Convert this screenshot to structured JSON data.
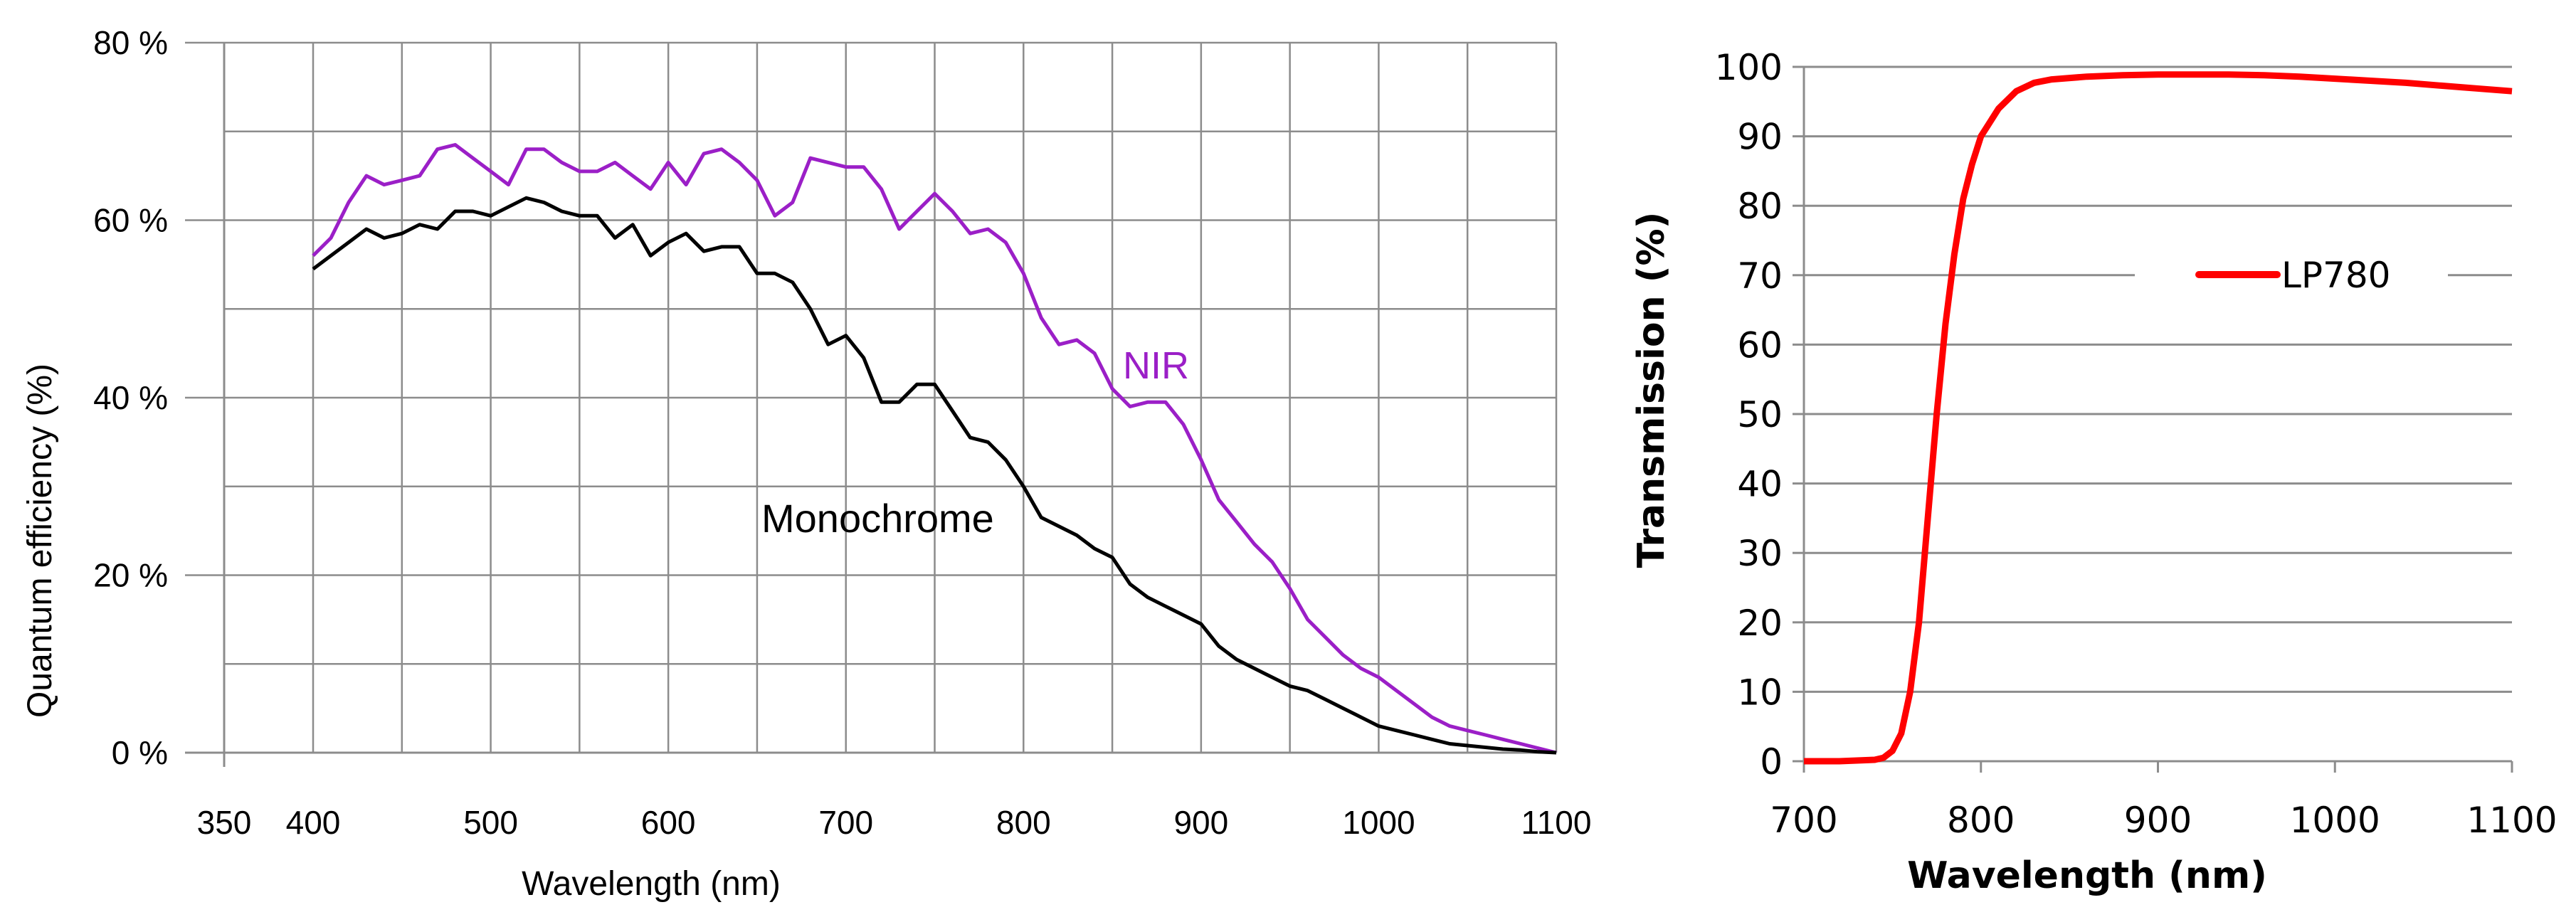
{
  "charts": {
    "left": {
      "type": "line",
      "xlabel": "Wavelength (nm)",
      "ylabel": "Quantum efficiency (%)",
      "ylim": [
        0,
        80
      ],
      "x_ticks": [
        "350",
        "400",
        "500",
        "600",
        "700",
        "800",
        "900",
        "1000",
        "1100"
      ],
      "y_ticks": [
        "0 %",
        "20 %",
        "40 %",
        "60 %",
        "80 %"
      ]
    },
    "right": {
      "type": "line",
      "xlabel": "Wavelength (nm)",
      "ylabel": "Transmission (%)",
      "xlim": [
        700,
        1100
      ],
      "ylim": [
        0,
        100
      ],
      "x_ticks": [
        "700",
        "800",
        "900",
        "1000",
        "1100"
      ],
      "y_ticks": [
        "0",
        "10",
        "20",
        "30",
        "40",
        "50",
        "60",
        "70",
        "80",
        "90",
        "100"
      ],
      "legend": "LP780"
    }
  },
  "chart_data": [
    {
      "type": "line",
      "title": "",
      "xlabel": "Wavelength (nm)",
      "ylabel": "Quantum efficiency (%)",
      "xlim": [
        350,
        1100
      ],
      "ylim": [
        0,
        80
      ],
      "grid": true,
      "series": [
        {
          "name": "NIR",
          "color": "#9b1fc7",
          "x": [
            400,
            410,
            420,
            430,
            440,
            450,
            460,
            470,
            480,
            490,
            500,
            510,
            520,
            530,
            540,
            550,
            560,
            570,
            580,
            590,
            600,
            610,
            620,
            630,
            640,
            650,
            660,
            670,
            680,
            690,
            700,
            710,
            720,
            730,
            740,
            750,
            760,
            770,
            780,
            790,
            800,
            810,
            820,
            830,
            840,
            850,
            860,
            870,
            880,
            890,
            900,
            910,
            920,
            930,
            940,
            950,
            960,
            970,
            980,
            990,
            1000,
            1010,
            1020,
            1030,
            1040,
            1050,
            1060,
            1070,
            1080,
            1090,
            1100
          ],
          "values": [
            56,
            58,
            62,
            65,
            64,
            64.5,
            65,
            68,
            68.5,
            67,
            65.5,
            64,
            68,
            68,
            66.5,
            65.5,
            65.5,
            66.5,
            65,
            63.5,
            66.5,
            64,
            67.5,
            68,
            66.5,
            64.5,
            60.5,
            62,
            67,
            66.5,
            66,
            66,
            63.5,
            59,
            61,
            63,
            61,
            58.5,
            59,
            57.5,
            54,
            49,
            46,
            46.5,
            45,
            41,
            39,
            39.5,
            39.5,
            37,
            33,
            28.5,
            26,
            23.5,
            21.5,
            18.5,
            15,
            13,
            11,
            9.5,
            8.5,
            7,
            5.5,
            4,
            3,
            2.5,
            2,
            1.5,
            1,
            0.5,
            0
          ]
        },
        {
          "name": "Monochrome",
          "color": "#000000",
          "x": [
            400,
            410,
            420,
            430,
            440,
            450,
            460,
            470,
            480,
            490,
            500,
            510,
            520,
            530,
            540,
            550,
            560,
            570,
            580,
            590,
            600,
            610,
            620,
            630,
            640,
            650,
            660,
            670,
            680,
            690,
            700,
            710,
            720,
            730,
            740,
            750,
            760,
            770,
            780,
            790,
            800,
            810,
            820,
            830,
            840,
            850,
            860,
            870,
            880,
            890,
            900,
            910,
            920,
            930,
            940,
            950,
            960,
            970,
            980,
            990,
            1000,
            1010,
            1020,
            1030,
            1040,
            1050,
            1060,
            1070,
            1080,
            1090,
            1100
          ],
          "values": [
            54.5,
            56,
            57.5,
            59,
            58,
            58.5,
            59.5,
            59,
            61,
            61,
            60.5,
            61.5,
            62.5,
            62,
            61,
            60.5,
            60.5,
            58,
            59.5,
            56,
            57.5,
            58.5,
            56.5,
            57,
            57,
            54,
            54,
            53,
            50,
            46,
            47,
            44.5,
            39.5,
            39.5,
            41.5,
            41.5,
            38.5,
            35.5,
            35,
            33,
            30,
            26.5,
            25.5,
            24.5,
            23,
            22,
            19,
            17.5,
            16.5,
            15.5,
            14.5,
            12,
            10.5,
            9.5,
            8.5,
            7.5,
            7,
            6,
            5,
            4,
            3,
            2.5,
            2,
            1.5,
            1,
            0.8,
            0.6,
            0.4,
            0.3,
            0.1,
            0
          ],
          "label": "Monochrome"
        }
      ],
      "annotations": [
        "NIR",
        "Monochrome"
      ]
    },
    {
      "type": "line",
      "title": "",
      "xlabel": "Wavelength (nm)",
      "ylabel": "Transmission (%)",
      "xlim": [
        700,
        1100
      ],
      "ylim": [
        0,
        100
      ],
      "grid": true,
      "legend": "center-right",
      "series": [
        {
          "name": "LP780",
          "color": "#ff0000",
          "x": [
            700,
            720,
            740,
            745,
            750,
            755,
            760,
            765,
            770,
            775,
            780,
            785,
            790,
            795,
            800,
            810,
            820,
            830,
            840,
            860,
            880,
            900,
            920,
            940,
            960,
            980,
            1000,
            1020,
            1040,
            1060,
            1080,
            1100
          ],
          "values": [
            0,
            0,
            0.2,
            0.5,
            1.5,
            4,
            10,
            20,
            35,
            50,
            63,
            73,
            81,
            86,
            90,
            94,
            96.5,
            97.7,
            98.2,
            98.6,
            98.8,
            98.9,
            98.9,
            98.9,
            98.8,
            98.6,
            98.3,
            98,
            97.7,
            97.3,
            96.9,
            96.5
          ]
        }
      ]
    }
  ]
}
